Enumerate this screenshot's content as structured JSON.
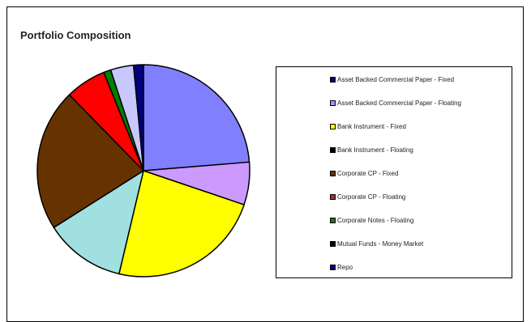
{
  "chart_data": {
    "type": "pie",
    "title": "Portfolio Composition",
    "legend_position": "right",
    "slices": [
      {
        "label": "Asset Backed Commercial Paper - Fixed",
        "value": 0.0,
        "color": "#000080",
        "swatch_fill": "#000080",
        "order": 0
      },
      {
        "label": "Asset Backed Commercial Paper - Floating",
        "value": 6.5,
        "color": "#CC99FF",
        "swatch_fill": "#9999FF",
        "order": 2
      },
      {
        "label": "Bank Instrument - Fixed",
        "value": 23.5,
        "color": "#FFFF00",
        "swatch_fill": "#FFFF00",
        "order": 3
      },
      {
        "label": "Bank Instrument - Floating",
        "value": 12.3,
        "color": "#A0E0E0",
        "swatch_fill": "#000000",
        "order": 4
      },
      {
        "label": "Corporate CP - Fixed",
        "value": 21.7,
        "color": "#663300",
        "swatch_fill": "#663300",
        "order": 5
      },
      {
        "label": "Corporate CP - Floating",
        "value": 6.2,
        "color": "#FF0000",
        "swatch_fill": "#993333",
        "order": 6
      },
      {
        "label": "Corporate Notes - Floating",
        "value": 1.1,
        "color": "#008000",
        "swatch_fill": "#336633",
        "order": 7
      },
      {
        "label": "Mutual Funds - Money Market",
        "value": 3.5,
        "color": "#C8C8FF",
        "swatch_fill": "#000000",
        "order": 8
      },
      {
        "label": "Repo",
        "value": 1.5,
        "color": "#000080",
        "swatch_fill": "#000080",
        "order": 9
      },
      {
        "label": "",
        "value": 23.7,
        "color": "#8080FF",
        "order": 1,
        "unlabeled": true
      }
    ]
  }
}
